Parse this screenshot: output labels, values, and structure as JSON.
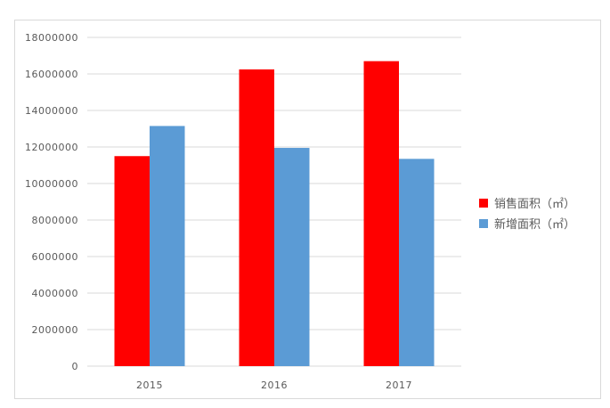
{
  "chart_data": {
    "type": "bar",
    "title": "",
    "xlabel": "",
    "ylabel": "",
    "categories": [
      "2015",
      "2016",
      "2017"
    ],
    "series": [
      {
        "name": "销售面积（㎡）",
        "color": "#ff0000",
        "values": [
          11500000,
          16250000,
          16700000
        ]
      },
      {
        "name": "新增面积（㎡）",
        "color": "#5b9bd5",
        "values": [
          13150000,
          11950000,
          11350000
        ]
      }
    ],
    "ylim": [
      0,
      18000000
    ],
    "yticks": [
      "0",
      "2000000",
      "4000000",
      "6000000",
      "8000000",
      "10000000",
      "12000000",
      "14000000",
      "16000000",
      "18000000"
    ],
    "grid": true,
    "legend_position": "right"
  },
  "legend": {
    "items": [
      {
        "label": "销售面积（㎡）",
        "color": "#ff0000"
      },
      {
        "label": "新增面积（㎡）",
        "color": "#5b9bd5"
      }
    ]
  }
}
